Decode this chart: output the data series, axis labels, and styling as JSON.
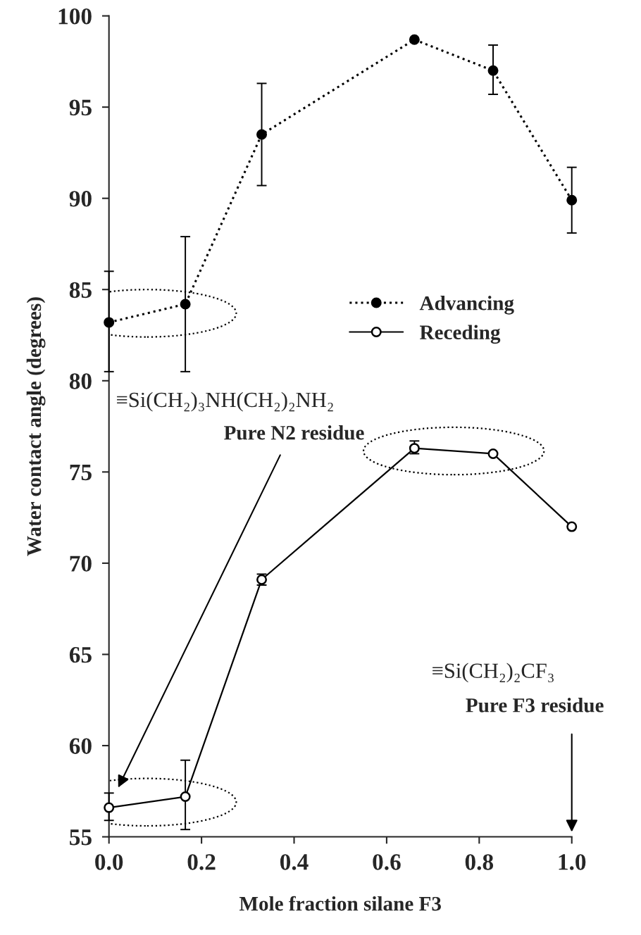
{
  "chart_data": {
    "type": "line",
    "xlabel": "Mole fraction silane F3",
    "ylabel": "Water contact angle (degrees)",
    "x": [
      0.0,
      0.165,
      0.33,
      0.66,
      0.83,
      1.0
    ],
    "series": [
      {
        "name": "Advancing",
        "color": "#000000",
        "line_style": "dotted",
        "marker": "circle",
        "values": [
          83.2,
          84.2,
          93.5,
          98.7,
          97.0,
          89.9
        ],
        "errors": [
          [
            80.5,
            86.0
          ],
          [
            80.5,
            87.9
          ],
          [
            90.7,
            96.3
          ],
          null,
          [
            95.7,
            98.4
          ],
          [
            88.1,
            91.7
          ]
        ]
      },
      {
        "name": "Receding",
        "color": "#000000",
        "line_style": "solid",
        "marker": "circle",
        "values": [
          56.6,
          57.2,
          69.1,
          76.3,
          76.0,
          72.0
        ],
        "errors": [
          [
            55.9,
            57.4
          ],
          [
            55.4,
            59.2
          ],
          [
            68.8,
            69.4
          ],
          [
            76.0,
            76.7
          ],
          null,
          null
        ]
      }
    ],
    "xlim": [
      0.0,
      1.0
    ],
    "xticks": [
      {
        "value": 0.0,
        "label": "0.0"
      },
      0.2,
      0.4,
      0.6,
      0.8,
      {
        "value": 1.0,
        "label": "1.0"
      }
    ],
    "ylim": [
      55,
      100
    ],
    "yticks": [
      55,
      60,
      65,
      70,
      75,
      80,
      85,
      90,
      95,
      100
    ],
    "grid": false,
    "legend": "right",
    "annotations": [
      "≡Si(CH₂)₃NH(CH₂)₂NH₂",
      "Pure N2 residue",
      "≡Si(CH₂)₂CF₃",
      "Pure F3 residue"
    ]
  }
}
